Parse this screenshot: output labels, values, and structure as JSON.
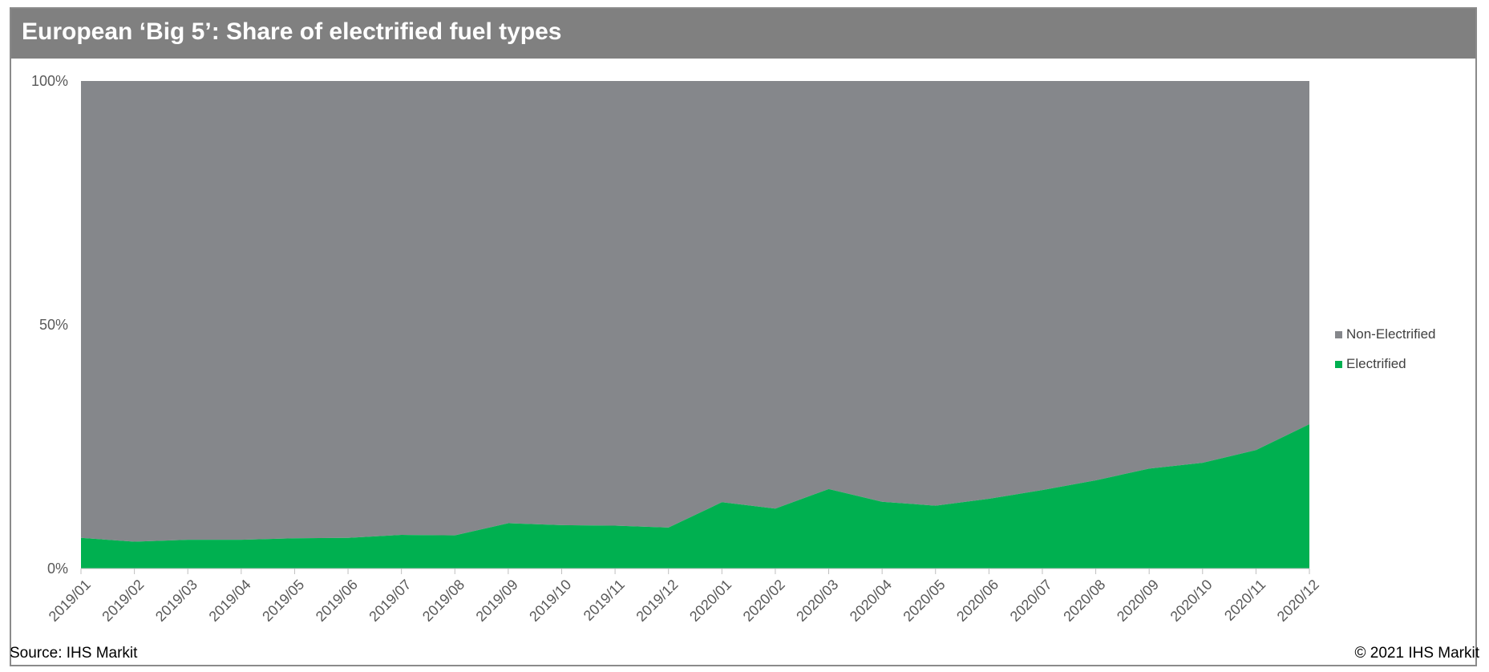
{
  "title": "European ‘Big 5’: Share of electrified fuel types",
  "source": "Source: IHS Markit",
  "copyright": "© 2021 IHS Markit",
  "colors": {
    "electrified": "#00b050",
    "non_electrified": "#85878b"
  },
  "legend": [
    {
      "label": "Non-Electrified",
      "color": "#85878b"
    },
    {
      "label": "Electrified",
      "color": "#00b050"
    }
  ],
  "chart_data": {
    "type": "area",
    "stacked": true,
    "categories": [
      "2019/01",
      "2019/02",
      "2019/03",
      "2019/04",
      "2019/05",
      "2019/06",
      "2019/07",
      "2019/08",
      "2019/09",
      "2019/10",
      "2019/11",
      "2019/12",
      "2020/01",
      "2020/02",
      "2020/03",
      "2020/04",
      "2020/05",
      "2020/06",
      "2020/07",
      "2020/08",
      "2020/09",
      "2020/10",
      "2020/11",
      "2020/12"
    ],
    "series": [
      {
        "name": "Electrified",
        "values": [
          6.3,
          5.5,
          5.9,
          5.9,
          6.2,
          6.3,
          6.9,
          6.8,
          9.3,
          8.9,
          8.8,
          8.4,
          13.6,
          12.3,
          16.3,
          13.7,
          12.9,
          14.3,
          16.1,
          18.1,
          20.5,
          21.7,
          24.3,
          29.6
        ]
      },
      {
        "name": "Non-Electrified",
        "values": [
          93.7,
          94.5,
          94.1,
          94.1,
          93.8,
          93.7,
          93.1,
          93.2,
          90.7,
          91.1,
          91.2,
          91.6,
          86.4,
          87.7,
          83.7,
          86.3,
          87.1,
          85.7,
          83.9,
          81.9,
          79.5,
          78.3,
          75.7,
          70.4
        ]
      }
    ],
    "yticks": [
      "0%",
      "50%",
      "100%"
    ],
    "ytick_values": [
      0,
      50,
      100
    ],
    "ylim": [
      0,
      100
    ],
    "grid": false,
    "legend_position": "right"
  }
}
